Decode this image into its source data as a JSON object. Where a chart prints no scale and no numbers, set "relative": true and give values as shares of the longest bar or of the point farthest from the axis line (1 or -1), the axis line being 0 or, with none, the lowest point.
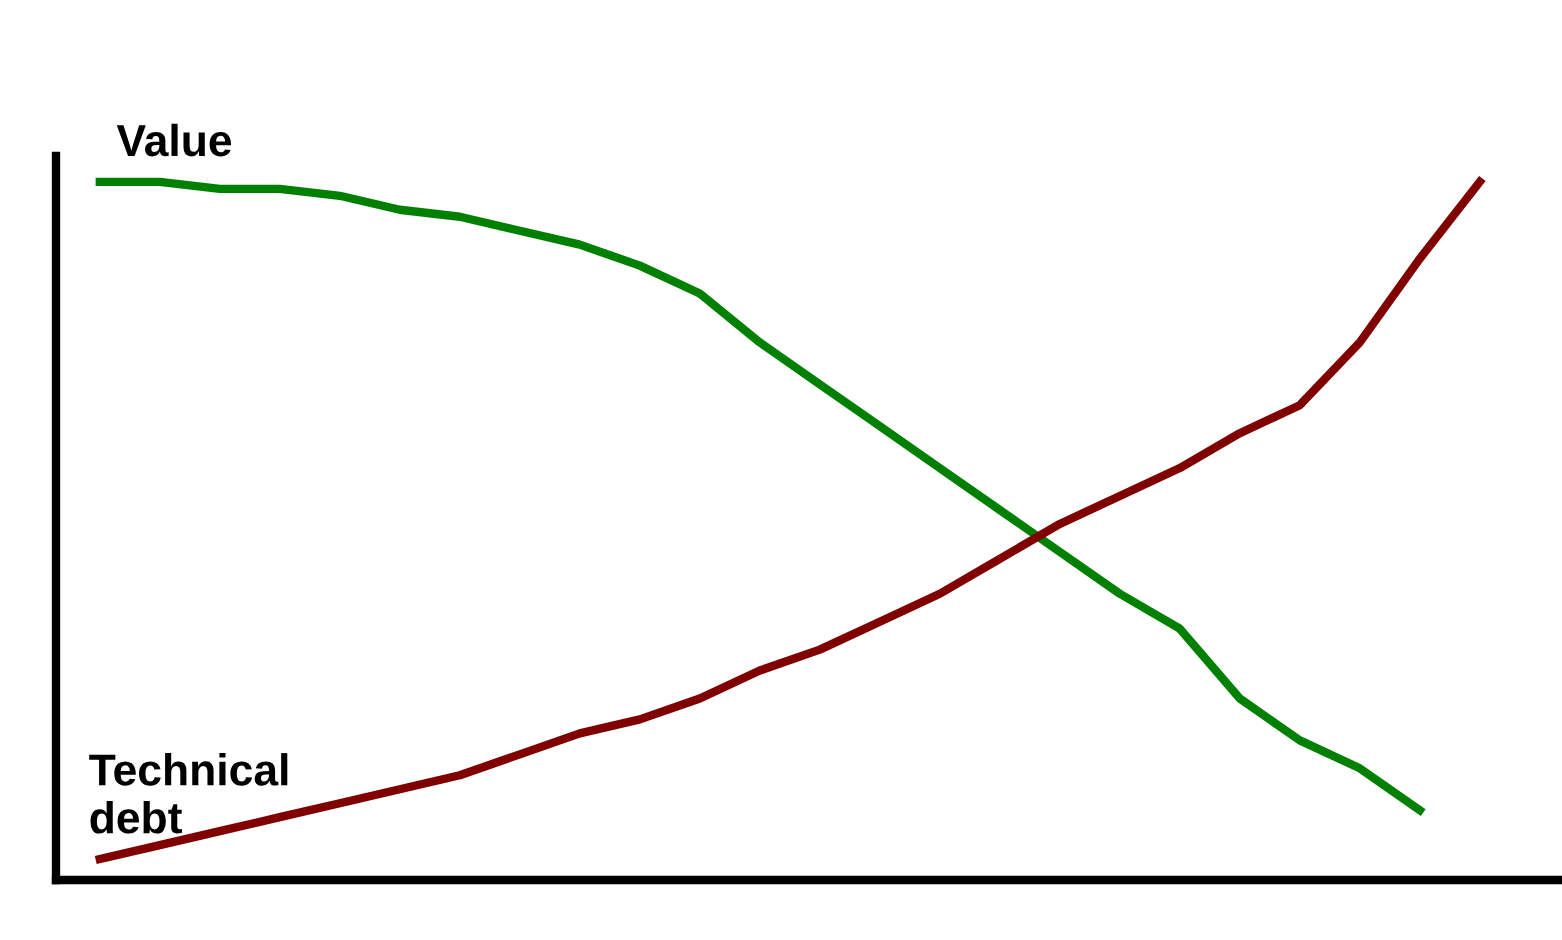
{
  "chart_data": {
    "type": "line",
    "relative": true,
    "legend": false,
    "grid": false,
    "marker": "none",
    "line_style": "solid",
    "categories": [
      null,
      null,
      null,
      null,
      null,
      null,
      null,
      null,
      null,
      null,
      null,
      null,
      null,
      null,
      null,
      null,
      null,
      null,
      null,
      null,
      null,
      null,
      null,
      null
    ],
    "series": [
      {
        "name": "Value",
        "color": "#008000",
        "values": [
          1.0,
          1.0,
          0.99,
          0.99,
          0.98,
          0.96,
          0.95,
          0.93,
          0.91,
          0.88,
          0.84,
          0.77,
          0.71,
          0.65,
          0.59,
          0.53,
          0.47,
          0.41,
          0.36,
          0.26,
          0.2,
          0.16,
          0.1,
          null
        ]
      },
      {
        "name": "Technical\ndebt",
        "color": "#800000",
        "values": [
          0.03,
          0.05,
          0.07,
          0.09,
          0.11,
          0.13,
          0.15,
          0.18,
          0.21,
          0.23,
          0.26,
          0.3,
          0.33,
          0.37,
          0.41,
          0.46,
          0.51,
          0.55,
          0.59,
          0.64,
          0.68,
          0.77,
          0.89,
          1.0
        ]
      }
    ]
  }
}
